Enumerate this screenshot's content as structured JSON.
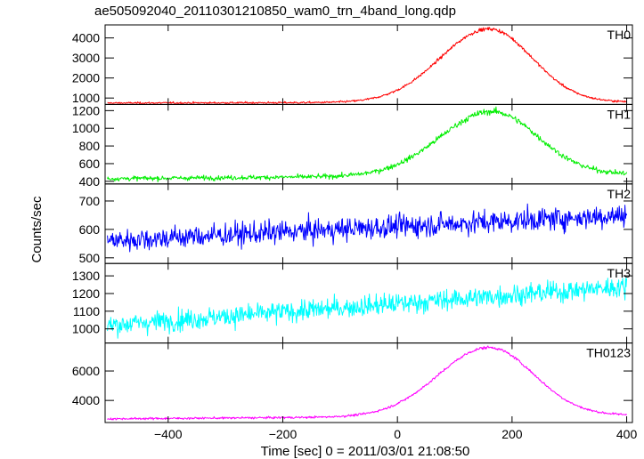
{
  "chart_data": {
    "type": "line",
    "title": "ae505092040_20110301210850_wam0_trn_4band_long.qdp",
    "xlabel": "Time [sec] 0 = 2011/03/01 21:08:50",
    "ylabel": "Counts/sec",
    "xlim": [
      -510,
      410
    ],
    "xticks": [
      -400,
      -200,
      0,
      200,
      400
    ],
    "xtick_labels": [
      "−400",
      "−200",
      "0",
      "200",
      "400"
    ],
    "grid": false,
    "legend": "none",
    "panels": [
      {
        "name": "TH0",
        "color": "#ff0000",
        "ylim": [
          680,
          4650
        ],
        "yticks": [
          1000,
          2000,
          3000,
          4000
        ],
        "ytick_labels": [
          "1000",
          "2000",
          "3000",
          "4000"
        ],
        "baseline_start": 750,
        "baseline_end": 800,
        "peak": 4450,
        "peak_time": 160,
        "rise_sigma": 85,
        "fall_sigma": 75,
        "trend": 0,
        "noise": 40
      },
      {
        "name": "TH1",
        "color": "#00ee00",
        "ylim": [
          370,
          1270
        ],
        "yticks": [
          400,
          600,
          800,
          1000,
          1200
        ],
        "ytick_labels": [
          "400",
          "600",
          "800",
          "1000",
          "1200"
        ],
        "baseline_start": 430,
        "baseline_end": 480,
        "peak": 1190,
        "peak_time": 165,
        "rise_sigma": 90,
        "fall_sigma": 80,
        "trend": 0,
        "noise": 22
      },
      {
        "name": "TH2",
        "color": "#0000ff",
        "ylim": [
          480,
          760
        ],
        "yticks": [
          500,
          600,
          700
        ],
        "ytick_labels": [
          "500",
          "600",
          "700"
        ],
        "baseline_start": 560,
        "baseline_end": 650,
        "peak": 0,
        "peak_time": 160,
        "rise_sigma": 90,
        "fall_sigma": 80,
        "trend": 1,
        "noise": 34
      },
      {
        "name": "TH3",
        "color": "#00ffff",
        "ylim": [
          920,
          1370
        ],
        "yticks": [
          1000,
          1100,
          1200,
          1300
        ],
        "ytick_labels": [
          "1000",
          "1100",
          "1200",
          "1300"
        ],
        "baseline_start": 1020,
        "baseline_end": 1240,
        "peak": 0,
        "peak_time": 160,
        "rise_sigma": 90,
        "fall_sigma": 80,
        "trend": 1,
        "noise": 50
      },
      {
        "name": "TH0123",
        "color": "#ff00ff",
        "ylim": [
          2500,
          7900
        ],
        "yticks": [
          4000,
          6000
        ],
        "ytick_labels": [
          "4000",
          "6000"
        ],
        "baseline_start": 2750,
        "baseline_end": 3000,
        "peak": 7600,
        "peak_time": 160,
        "rise_sigma": 88,
        "fall_sigma": 78,
        "trend": 0,
        "noise": 60
      }
    ]
  }
}
